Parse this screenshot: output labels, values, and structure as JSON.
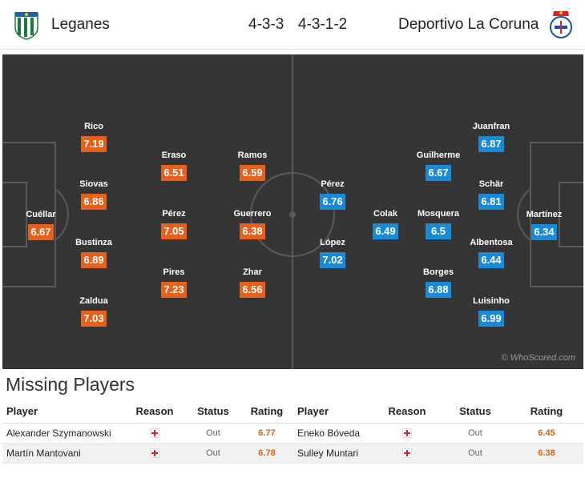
{
  "home_team": {
    "name": "Leganes",
    "formation": "4-3-3"
  },
  "away_team": {
    "name": "Deportivo La Coruna",
    "formation": "4-3-1-2"
  },
  "colors": {
    "home_rating": "#e7611d",
    "away_rating": "#1a8ad6",
    "pitch": "#353535"
  },
  "home_players": [
    {
      "name": "Cuéllar",
      "rating": "6.67"
    },
    {
      "name": "Rico",
      "rating": "7.19"
    },
    {
      "name": "Siovas",
      "rating": "6.86"
    },
    {
      "name": "Bustinza",
      "rating": "6.89"
    },
    {
      "name": "Zaldua",
      "rating": "7.03"
    },
    {
      "name": "Eraso",
      "rating": "6.51"
    },
    {
      "name": "Pérez",
      "rating": "7.05"
    },
    {
      "name": "Pires",
      "rating": "7.23"
    },
    {
      "name": "Ramos",
      "rating": "6.59"
    },
    {
      "name": "Guerrero",
      "rating": "6.38"
    },
    {
      "name": "Zhar",
      "rating": "6.56"
    }
  ],
  "away_players": [
    {
      "name": "Martínez",
      "rating": "6.34"
    },
    {
      "name": "Juanfran",
      "rating": "6.87"
    },
    {
      "name": "Schär",
      "rating": "6.81"
    },
    {
      "name": "Albentosa",
      "rating": "6.44"
    },
    {
      "name": "Luisinho",
      "rating": "6.99"
    },
    {
      "name": "Guilherme",
      "rating": "6.67"
    },
    {
      "name": "Mosquera",
      "rating": "6.5"
    },
    {
      "name": "Borges",
      "rating": "6.88"
    },
    {
      "name": "Colak",
      "rating": "6.49"
    },
    {
      "name": "Pérez",
      "rating": "6.76"
    },
    {
      "name": "López",
      "rating": "7.02"
    }
  ],
  "watermark": "© WhoScored.com",
  "missing": {
    "title": "Missing Players",
    "headers": {
      "player": "Player",
      "reason": "Reason",
      "status": "Status",
      "rating": "Rating"
    },
    "home": [
      {
        "player": "Alexander Szymanowski",
        "reason": "injury-icon",
        "status": "Out",
        "rating": "6.77"
      },
      {
        "player": "Martín Mantovani",
        "reason": "injury-icon",
        "status": "Out",
        "rating": "6.78"
      }
    ],
    "away": [
      {
        "player": "Eneko Bóveda",
        "reason": "injury-icon",
        "status": "Out",
        "rating": "6.45"
      },
      {
        "player": "Sulley Muntari",
        "reason": "injury-icon",
        "status": "Out",
        "rating": "6.38"
      }
    ]
  }
}
